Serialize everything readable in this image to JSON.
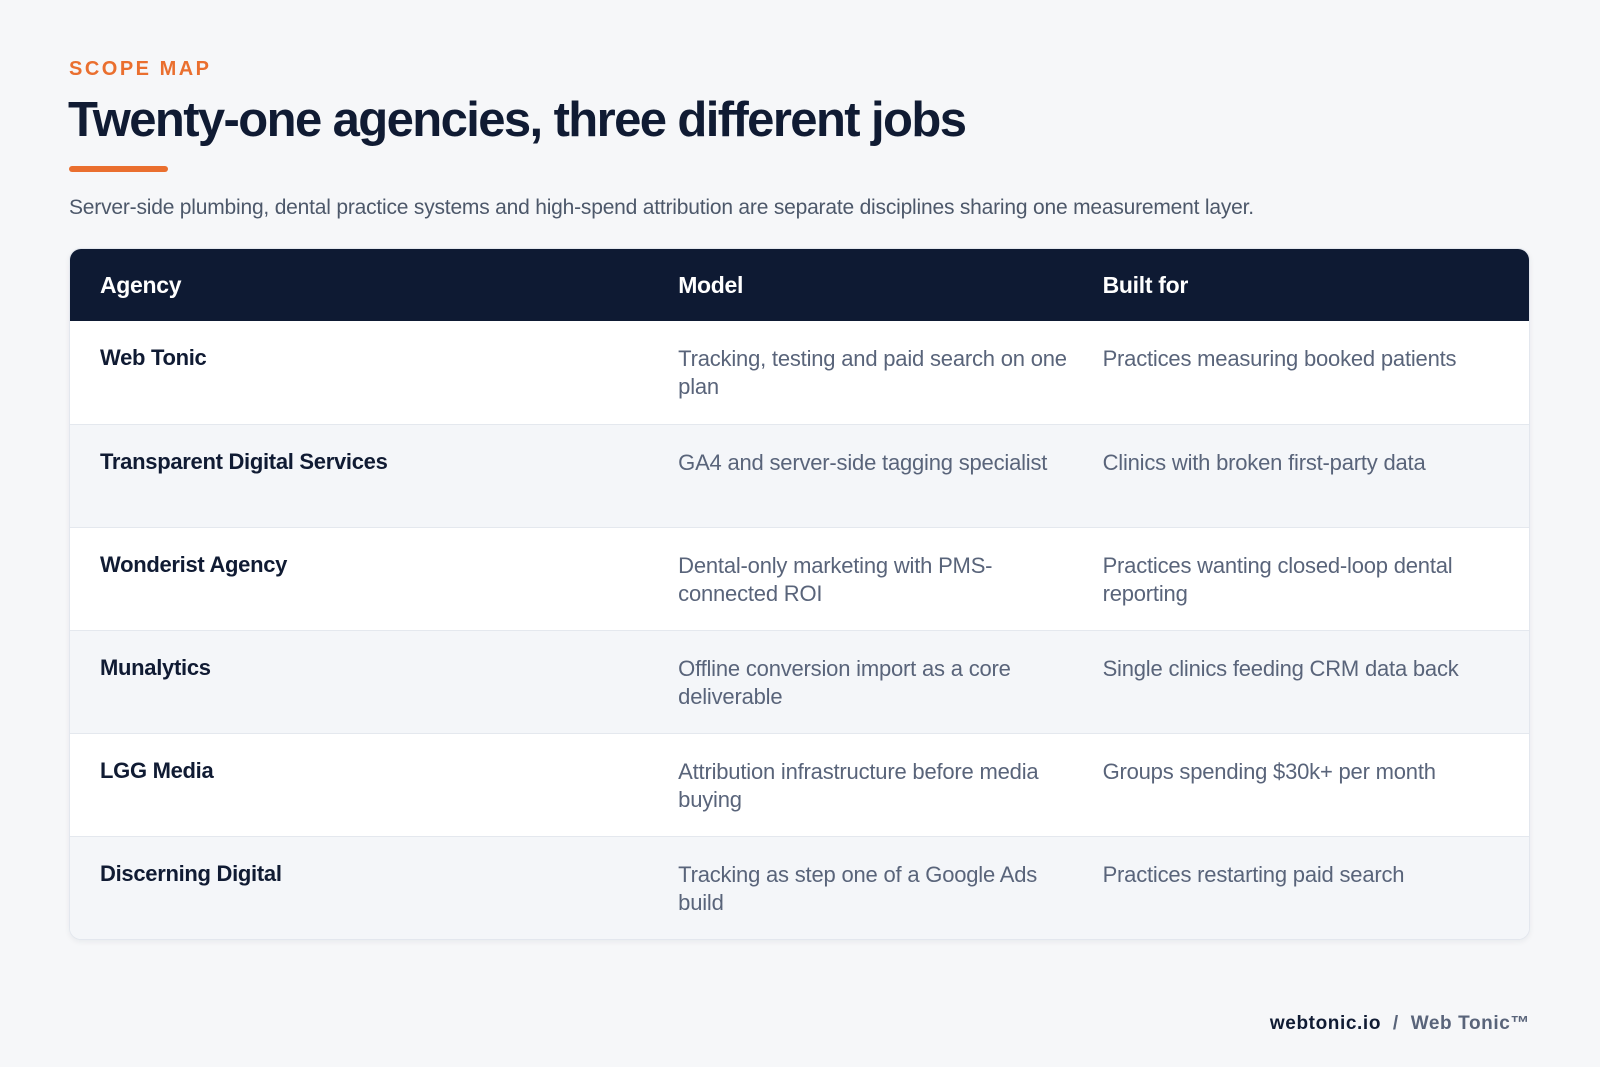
{
  "header": {
    "eyebrow": "SCOPE MAP",
    "title": "Twenty-one agencies, three different jobs",
    "subtitle": "Server-side plumbing, dental practice systems and high-spend attribution are separate disciplines sharing one measurement layer."
  },
  "table": {
    "columns": [
      "Agency",
      "Model",
      "Built for"
    ],
    "rows": [
      {
        "agency": "Web Tonic",
        "model": "Tracking, testing and paid search on one plan",
        "built_for": "Practices measuring booked patients"
      },
      {
        "agency": "Transparent Digital Services",
        "model": "GA4 and server-side tagging specialist",
        "built_for": "Clinics with broken first-party data"
      },
      {
        "agency": "Wonderist Agency",
        "model": "Dental-only marketing with PMS-connected ROI",
        "built_for": "Practices wanting closed-loop dental reporting"
      },
      {
        "agency": "Munalytics",
        "model": "Offline conversion import as a core deliverable",
        "built_for": "Single clinics feeding CRM data back"
      },
      {
        "agency": "LGG Media",
        "model": "Attribution infrastructure before media buying",
        "built_for": "Groups spending $30k+ per month"
      },
      {
        "agency": "Discerning Digital",
        "model": "Tracking as step one of a Google Ads build",
        "built_for": "Practices restarting paid search"
      }
    ]
  },
  "footer": {
    "domain": "webtonic.io",
    "separator": "/",
    "brand": "Web Tonic™"
  },
  "colors": {
    "accent": "#ea6f2f",
    "navy": "#0e1a33",
    "background": "#f6f7f9"
  }
}
